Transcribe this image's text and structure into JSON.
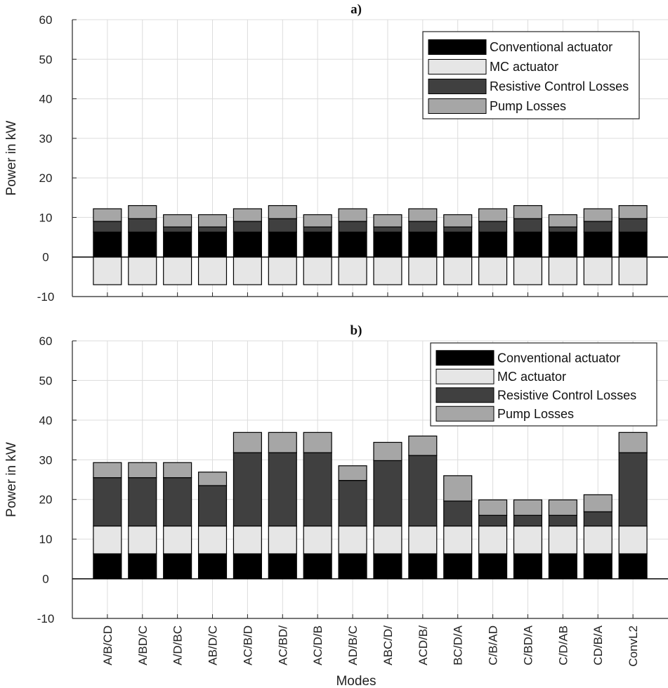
{
  "chart_data": [
    {
      "type": "bar",
      "stacked": true,
      "title": "a)",
      "xlabel": "",
      "ylabel": "Power in kW",
      "ylim": [
        -10,
        60
      ],
      "yticks": [
        -10,
        0,
        10,
        20,
        30,
        40,
        50,
        60
      ],
      "grid": true,
      "legend_position": "top-right",
      "categories": [
        "A/B/CD",
        "A/BD/C",
        "A/D/BC",
        "AB/D/C",
        "AC/B/D",
        "AC/BD/",
        "AC/D/B",
        "AD/B/C",
        "ABC/D/",
        "ACD/B/",
        "BC/D/A",
        "C/B/AD",
        "C/BD/A",
        "C/D/AB",
        "CD/B/A",
        "ConvL2"
      ],
      "series": [
        {
          "name": "Conventional actuator",
          "color": "#000000",
          "values": [
            6.3,
            6.3,
            6.3,
            6.3,
            6.3,
            6.3,
            6.3,
            6.3,
            6.3,
            6.3,
            6.3,
            6.3,
            6.3,
            6.3,
            6.3,
            6.3
          ]
        },
        {
          "name": "MC actuator",
          "color": "#e6e6e6",
          "values": [
            -7,
            -7,
            -7,
            -7,
            -7,
            -7,
            -7,
            -7,
            -7,
            -7,
            -7,
            -7,
            -7,
            -7,
            -7,
            -7
          ]
        },
        {
          "name": "Resistive Control Losses",
          "color": "#404040",
          "values": [
            2.7,
            3.4,
            1.3,
            1.3,
            2.7,
            3.4,
            1.3,
            2.7,
            1.3,
            2.7,
            1.3,
            2.7,
            3.4,
            1.3,
            2.7,
            3.4
          ]
        },
        {
          "name": "Pump Losses",
          "color": "#a6a6a6",
          "values": [
            3.2,
            3.3,
            3.1,
            3.1,
            3.2,
            3.3,
            3.1,
            3.2,
            3.1,
            3.2,
            3.1,
            3.2,
            3.3,
            3.1,
            3.2,
            3.3
          ]
        }
      ]
    },
    {
      "type": "bar",
      "stacked": true,
      "title": "b)",
      "xlabel": "Modes",
      "ylabel": "Power in kW",
      "ylim": [
        -10,
        60
      ],
      "yticks": [
        -10,
        0,
        10,
        20,
        30,
        40,
        50,
        60
      ],
      "grid": true,
      "legend_position": "top-right",
      "categories": [
        "A/B/CD",
        "A/BD/C",
        "A/D/BC",
        "AB/D/C",
        "AC/B/D",
        "AC/BD/",
        "AC/D/B",
        "AD/B/C",
        "ABC/D/",
        "ACD/B/",
        "BC/D/A",
        "C/B/AD",
        "C/BD/A",
        "C/D/AB",
        "CD/B/A",
        "ConvL2"
      ],
      "series": [
        {
          "name": "Conventional actuator",
          "color": "#000000",
          "values": [
            6.3,
            6.3,
            6.3,
            6.3,
            6.3,
            6.3,
            6.3,
            6.3,
            6.3,
            6.3,
            6.3,
            6.3,
            6.3,
            6.3,
            6.3,
            6.3
          ]
        },
        {
          "name": "MC actuator",
          "color": "#e6e6e6",
          "values": [
            7,
            7,
            7,
            7,
            7,
            7,
            7,
            7,
            7,
            7,
            7,
            7,
            7,
            7,
            7,
            7
          ]
        },
        {
          "name": "Resistive Control Losses",
          "color": "#404040",
          "values": [
            12.2,
            12.2,
            12.2,
            10.2,
            18.5,
            18.5,
            18.5,
            11.5,
            16.5,
            17.8,
            6.3,
            2.7,
            2.7,
            2.7,
            3.6,
            18.5
          ]
        },
        {
          "name": "Pump Losses",
          "color": "#a6a6a6",
          "values": [
            3.8,
            3.8,
            3.8,
            3.4,
            5.1,
            5.1,
            5.1,
            3.7,
            4.6,
            4.9,
            6.4,
            3.9,
            3.9,
            3.9,
            4.3,
            5.1
          ]
        }
      ]
    }
  ]
}
